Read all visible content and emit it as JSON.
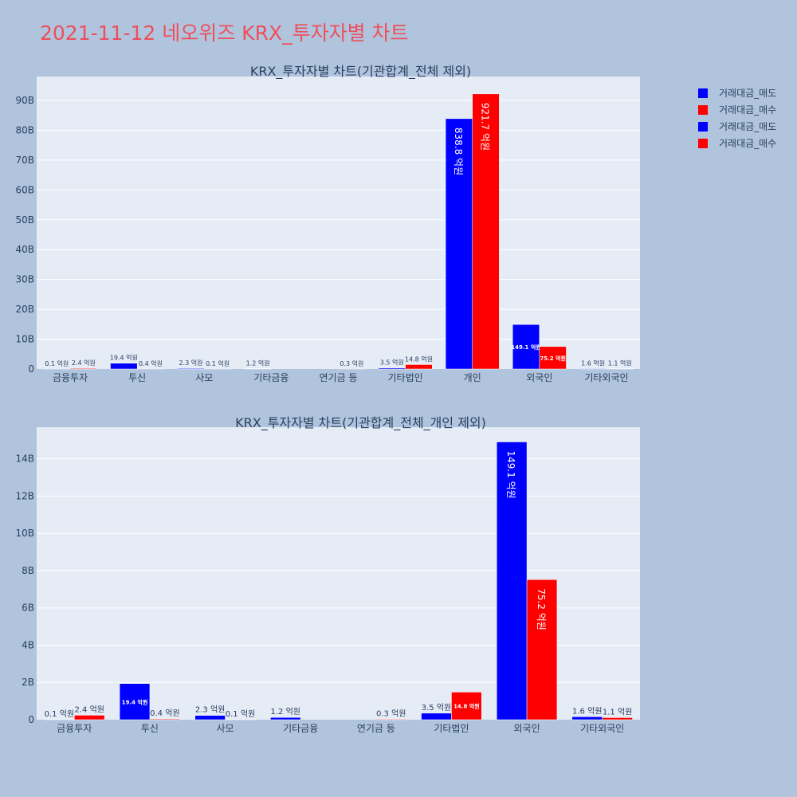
{
  "page": {
    "title": "2021-11-12 네오위즈 KRX_투자자별 차트"
  },
  "legend": {
    "items": [
      {
        "label": "거래대금_매도",
        "color": "#0000ff"
      },
      {
        "label": "거래대금_매수",
        "color": "#ff0000"
      },
      {
        "label": "거래대금_매도",
        "color": "#0000ff"
      },
      {
        "label": "거래대금_매수",
        "color": "#ff0000"
      }
    ]
  },
  "chart_data": [
    {
      "type": "bar",
      "title": "KRX_투자자별 차트(기관합계_전체 제외)",
      "categories": [
        "금융투자",
        "투신",
        "사모",
        "기타금융",
        "연기금 등",
        "기타법인",
        "개인",
        "외국인",
        "기타외국인"
      ],
      "series": [
        {
          "name": "거래대금_매도",
          "color": "#0000ff",
          "values": [
            10000000,
            1940000000,
            230000000,
            120000000,
            0,
            350000000,
            83880000000,
            14910000000,
            160000000
          ],
          "labels": [
            "0.1 억원",
            "19.4 억원",
            "2.3 억원",
            "1.2 억원",
            "",
            "3.5 억원",
            "838.8 억원",
            "149.1 억원",
            "1.6 억원"
          ]
        },
        {
          "name": "거래대금_매수",
          "color": "#ff0000",
          "values": [
            240000000,
            40000000,
            10000000,
            0,
            30000000,
            1480000000,
            92170000000,
            7520000000,
            110000000
          ],
          "labels": [
            "2.4 억원",
            "0.4 억원",
            "0.1 억원",
            "",
            "0.3 억원",
            "14.8 억원",
            "921.7 억원",
            "75.2 억원",
            "1.1 억원"
          ]
        }
      ],
      "ylim": [
        0,
        98000000000
      ],
      "yticks": [
        0,
        10000000000,
        20000000000,
        30000000000,
        40000000000,
        50000000000,
        60000000000,
        70000000000,
        80000000000,
        90000000000
      ],
      "ytick_labels": [
        "0",
        "10B",
        "20B",
        "30B",
        "40B",
        "50B",
        "60B",
        "70B",
        "80B",
        "90B"
      ],
      "xlabel": "",
      "ylabel": "",
      "grid": true
    },
    {
      "type": "bar",
      "title": "KRX_투자자별 차트(기관합계_전체_개인 제외)",
      "categories": [
        "금융투자",
        "투신",
        "사모",
        "기타금융",
        "연기금 등",
        "기타법인",
        "외국인",
        "기타외국인"
      ],
      "series": [
        {
          "name": "거래대금_매도",
          "color": "#0000ff",
          "values": [
            10000000,
            1940000000,
            230000000,
            120000000,
            0,
            350000000,
            14910000000,
            160000000
          ],
          "labels": [
            "0.1 억원",
            "19.4 억원",
            "2.3 억원",
            "1.2 억원",
            "",
            "3.5 억원",
            "149.1 억원",
            "1.6 억원"
          ]
        },
        {
          "name": "거래대금_매수",
          "color": "#ff0000",
          "values": [
            240000000,
            40000000,
            10000000,
            0,
            30000000,
            1480000000,
            7520000000,
            110000000
          ],
          "labels": [
            "2.4 억원",
            "0.4 억원",
            "0.1 억원",
            "",
            "0.3 억원",
            "14.8 억원",
            "75.2 억원",
            "1.1 억원"
          ]
        }
      ],
      "ylim": [
        0,
        15700000000
      ],
      "yticks": [
        0,
        2000000000,
        4000000000,
        6000000000,
        8000000000,
        10000000000,
        12000000000,
        14000000000
      ],
      "ytick_labels": [
        "0",
        "2B",
        "4B",
        "6B",
        "8B",
        "10B",
        "12B",
        "14B"
      ],
      "xlabel": "",
      "ylabel": "",
      "grid": true
    }
  ]
}
